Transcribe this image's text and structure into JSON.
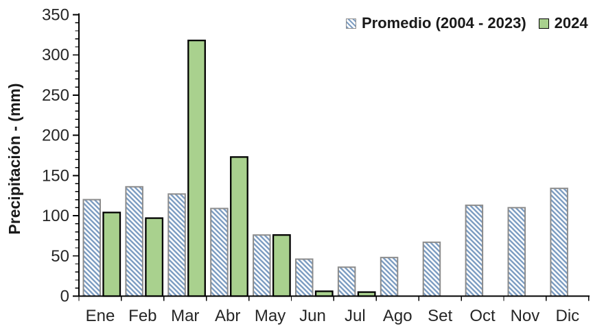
{
  "chart_data": {
    "type": "bar",
    "title": "",
    "xlabel": "",
    "ylabel": "Precipitación - (mm)",
    "ylim": [
      0,
      350
    ],
    "ytick_step": 50,
    "ytick_minor_step": 10,
    "yticks": [
      0,
      50,
      100,
      150,
      200,
      250,
      300,
      350
    ],
    "grid": false,
    "legend_position": "top-right",
    "categories": [
      "Ene",
      "Feb",
      "Mar",
      "Abr",
      "May",
      "Jun",
      "Jul",
      "Ago",
      "Set",
      "Oct",
      "Nov",
      "Dic"
    ],
    "series": [
      {
        "name": "Promedio (2004 - 2023)",
        "style": "hatched-diagonal",
        "fill": "#ffffff",
        "hatch_color": "#7d9dc2",
        "border_color": "#8c8c8c",
        "values": [
          120,
          136,
          127,
          109,
          76,
          46,
          36,
          48,
          67,
          113,
          110,
          134
        ]
      },
      {
        "name": "2024",
        "style": "solid",
        "fill": "#a9d18e",
        "border_color": "#000000",
        "values": [
          104,
          97,
          318,
          173,
          76,
          6,
          5,
          null,
          null,
          null,
          null,
          null
        ]
      }
    ],
    "axis_color": "#000000",
    "text_color": "#262626"
  }
}
